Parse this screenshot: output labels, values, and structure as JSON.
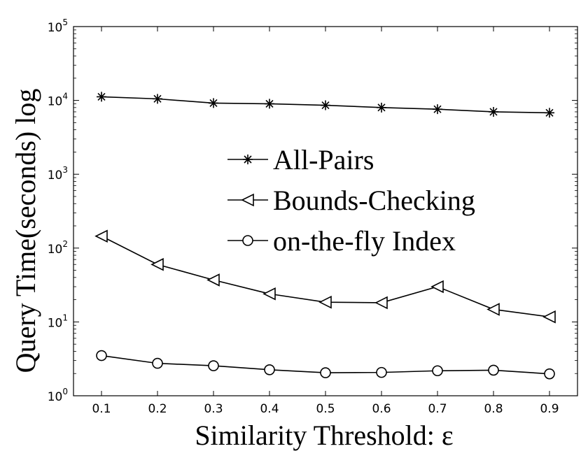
{
  "chart_data": {
    "type": "line",
    "title": "",
    "xlabel": "Similarity Threshold: ε",
    "ylabel": "Query Time(seconds) log",
    "yscale": "log",
    "xlim": [
      0.05,
      0.95
    ],
    "ylim": [
      1,
      100000
    ],
    "grid": false,
    "legend_position": "center",
    "x": [
      0.1,
      0.2,
      0.3,
      0.4,
      0.5,
      0.6,
      0.7,
      0.8,
      0.9
    ],
    "x_tick_labels": [
      "0.1",
      "0.2",
      "0.3",
      "0.4",
      "0.5",
      "0.6",
      "0.7",
      "0.8",
      "0.9"
    ],
    "y_ticks": [
      {
        "value": 1,
        "base": "10",
        "exp": "0"
      },
      {
        "value": 10,
        "base": "10",
        "exp": "1"
      },
      {
        "value": 100,
        "base": "10",
        "exp": "2"
      },
      {
        "value": 1000,
        "base": "10",
        "exp": "3"
      },
      {
        "value": 10000,
        "base": "10",
        "exp": "4"
      },
      {
        "value": 100000,
        "base": "10",
        "exp": "5"
      }
    ],
    "series": [
      {
        "name": "All-Pairs",
        "marker": "asterisk",
        "color": "#000000",
        "values": [
          11200,
          10500,
          9200,
          9000,
          8600,
          8000,
          7600,
          7000,
          6800
        ]
      },
      {
        "name": "Bounds-Checking",
        "marker": "triangle-left",
        "color": "#000000",
        "values": [
          145,
          60,
          37,
          24,
          18.5,
          18.2,
          30,
          14.8,
          11.7
        ]
      },
      {
        "name": "on-the-fly Index",
        "marker": "circle",
        "color": "#000000",
        "values": [
          3.5,
          2.75,
          2.55,
          2.25,
          2.05,
          2.07,
          2.18,
          2.22,
          1.98
        ]
      }
    ]
  }
}
